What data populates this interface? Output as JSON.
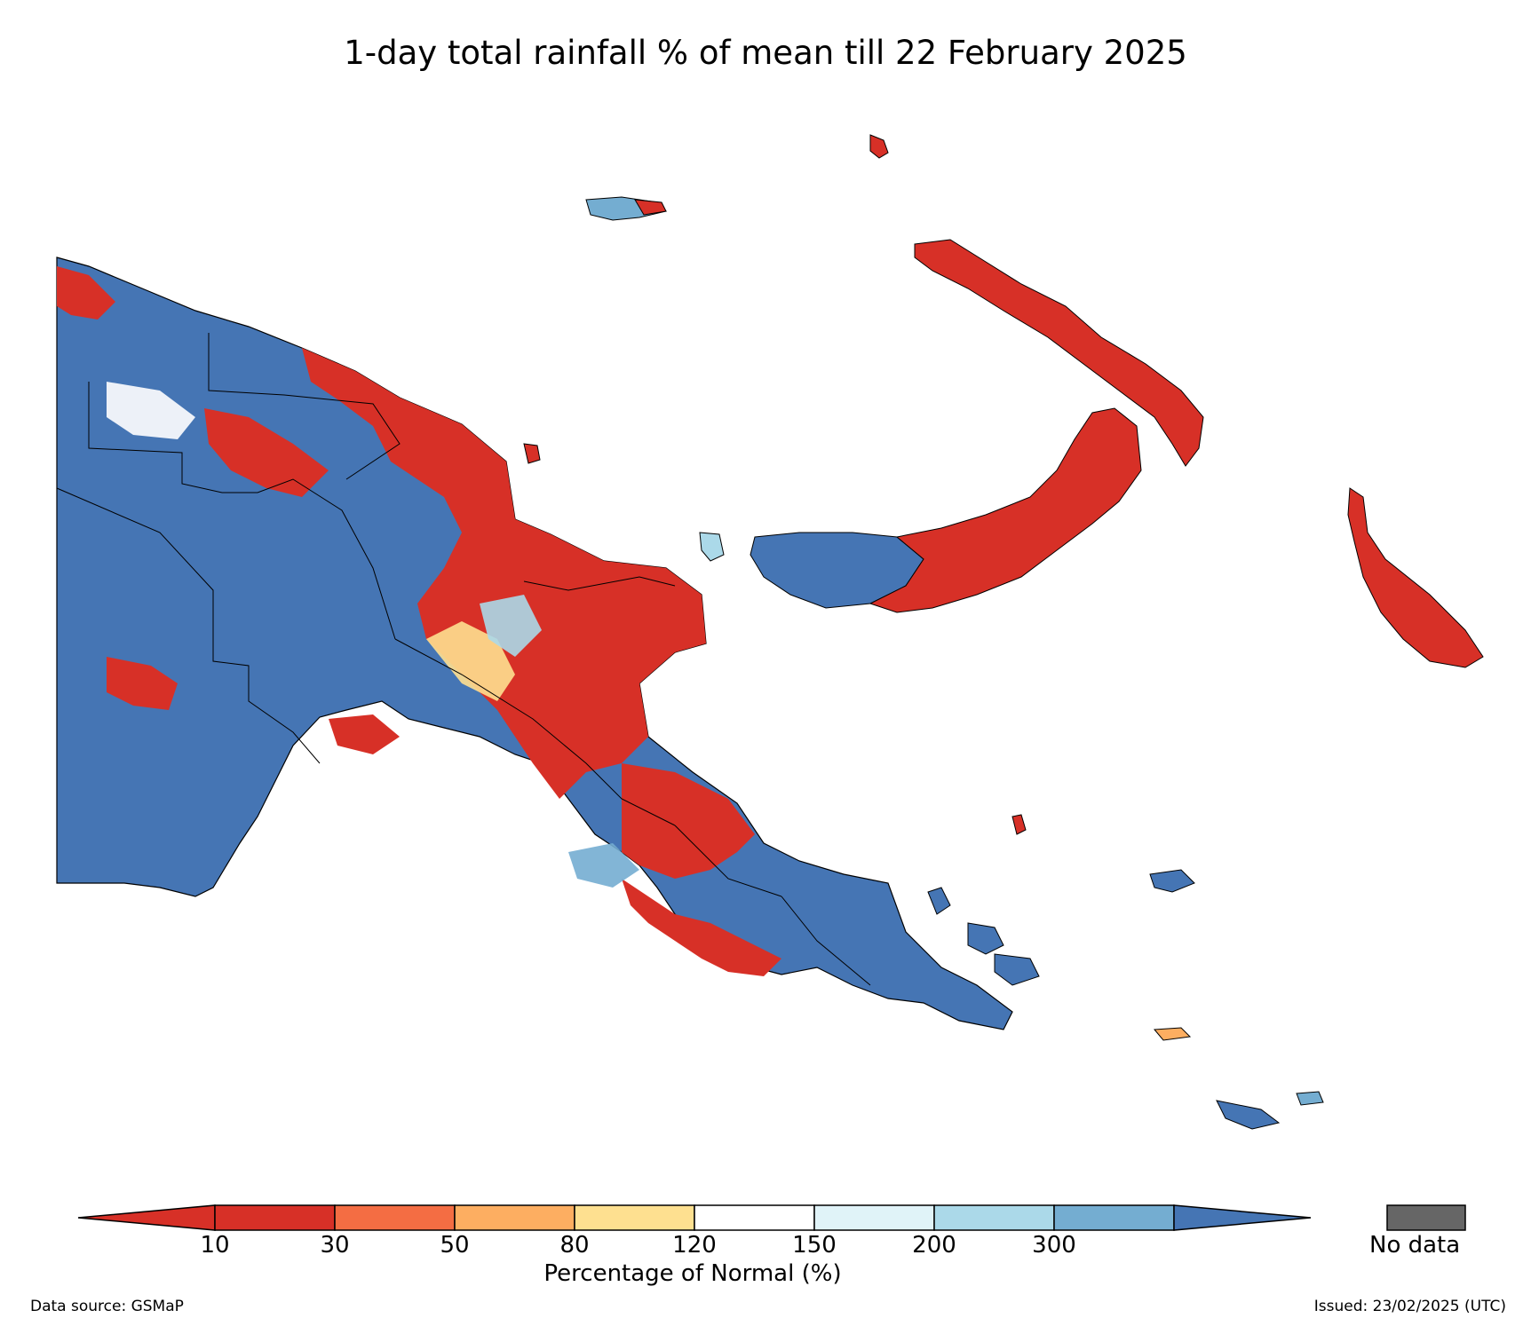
{
  "title": "1-day total rainfall % of mean till 22 February 2025",
  "colorbar": {
    "title": "Percentage of Normal (%)",
    "bins": [
      {
        "label": "10",
        "color": "#d73027"
      },
      {
        "label": "30",
        "color": "#f46d43"
      },
      {
        "label": "50",
        "color": "#fdae61"
      },
      {
        "label": "80",
        "color": "#fee090"
      },
      {
        "label": "120",
        "color": "#ffffff"
      },
      {
        "label": "150",
        "color": "#e0f3f8"
      },
      {
        "label": "200",
        "color": "#abd9e9"
      },
      {
        "label": "300",
        "color": "#74add1"
      }
    ],
    "under_color": "#d73027",
    "over_color": "#4575b4",
    "nodata": {
      "label": "No data",
      "color": "#666666"
    }
  },
  "footer": {
    "data_source": "Data source: GSMaP",
    "issued": "Issued: 23/02/2025 (UTC)"
  }
}
